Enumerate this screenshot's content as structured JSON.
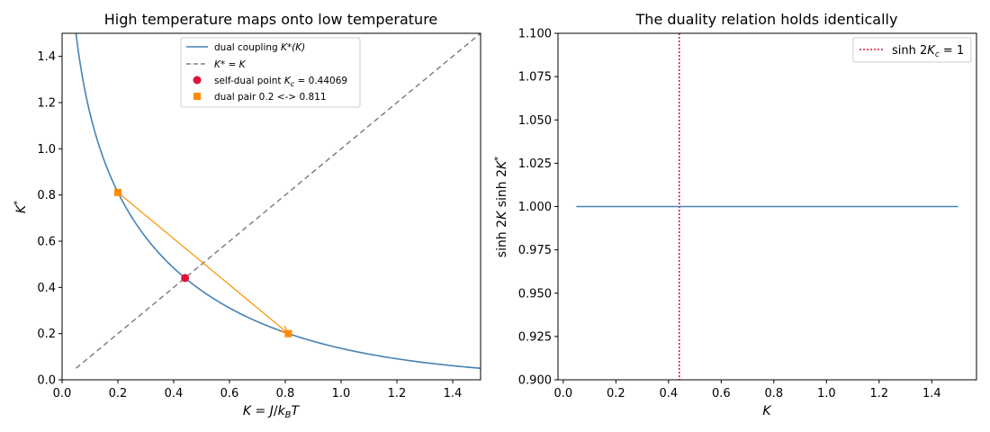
{
  "chart_data": [
    {
      "type": "line",
      "title": "High temperature maps onto low temperature",
      "xlabel": "K = J/k_BT",
      "ylabel": "K*",
      "xlim": [
        0.0,
        1.5
      ],
      "ylim": [
        0.0,
        1.5
      ],
      "xticks": [
        "0.0",
        "0.2",
        "0.4",
        "0.6",
        "0.8",
        "1.0",
        "1.2",
        "1.4"
      ],
      "yticks": [
        "0.0",
        "0.2",
        "0.4",
        "0.6",
        "0.8",
        "1.0",
        "1.2",
        "1.4"
      ],
      "legend_position": "top-center",
      "grid": false,
      "series": [
        {
          "name": "dual coupling K*(K)",
          "color": "#4682b4",
          "style": "solid",
          "x": [
            0.05,
            0.08,
            0.1,
            0.12,
            0.15,
            0.2,
            0.25,
            0.3,
            0.35,
            0.4,
            0.44069,
            0.5,
            0.6,
            0.7,
            0.8,
            0.9,
            1.0,
            1.1,
            1.2,
            1.3,
            1.4,
            1.5
          ],
          "y": [
            1.5,
            1.27,
            1.159,
            1.069,
            0.958,
            0.811,
            0.697,
            0.604,
            0.527,
            0.462,
            0.441,
            0.385,
            0.324,
            0.271,
            0.222,
            0.179,
            0.138,
            0.115,
            0.093,
            0.075,
            0.061,
            0.05
          ]
        },
        {
          "name": "K* = K",
          "color": "#808080",
          "style": "dashed",
          "x": [
            0.05,
            1.5
          ],
          "y": [
            0.05,
            1.5
          ]
        },
        {
          "name": "self-dual point K_c = 0.44069",
          "color": "#dc143c",
          "marker": "circle",
          "x": [
            0.44069
          ],
          "y": [
            0.44069
          ]
        },
        {
          "name": "dual pair 0.2 <-> 0.811",
          "color": "#ff8c00",
          "marker": "square",
          "x": [
            0.2,
            0.811
          ],
          "y": [
            0.811,
            0.2
          ]
        }
      ],
      "annotations": [
        {
          "type": "arrow",
          "from": [
            0.2,
            0.811
          ],
          "to": [
            0.811,
            0.2
          ],
          "color": "#ff8c00"
        }
      ],
      "legend_labels": {
        "dual": "dual coupling ",
        "dual_sym": "K*(K)",
        "identity": "K* = K",
        "selfdual": "self-dual point ",
        "selfdual_sym": "K",
        "selfdual_sub": "c",
        "selfdual_val": " = 0.44069",
        "pair": "dual pair 0.2 <-> 0.811"
      }
    },
    {
      "type": "line",
      "title": "The duality relation holds identically",
      "xlabel": "K",
      "ylabel": "sinh 2K sinh 2K*",
      "xlim": [
        -0.02,
        1.57
      ],
      "ylim": [
        0.9,
        1.1
      ],
      "xticks": [
        "0.0",
        "0.2",
        "0.4",
        "0.6",
        "0.8",
        "1.0",
        "1.2",
        "1.4"
      ],
      "yticks": [
        "0.900",
        "0.925",
        "0.950",
        "0.975",
        "1.000",
        "1.025",
        "1.050",
        "1.075",
        "1.100"
      ],
      "legend_position": "top-right",
      "grid": false,
      "series": [
        {
          "name": "",
          "color": "#4682b4",
          "style": "solid",
          "x": [
            0.05,
            1.5
          ],
          "y": [
            1.0,
            1.0
          ]
        }
      ],
      "vlines": [
        {
          "x": 0.44069,
          "color": "#dc143c",
          "style": "dotted",
          "label": "sinh 2K_c = 1"
        }
      ],
      "legend_labels": {
        "vline_pre": "sinh 2",
        "vline_sym": "K",
        "vline_sub": "c",
        "vline_post": " = 1"
      }
    }
  ]
}
